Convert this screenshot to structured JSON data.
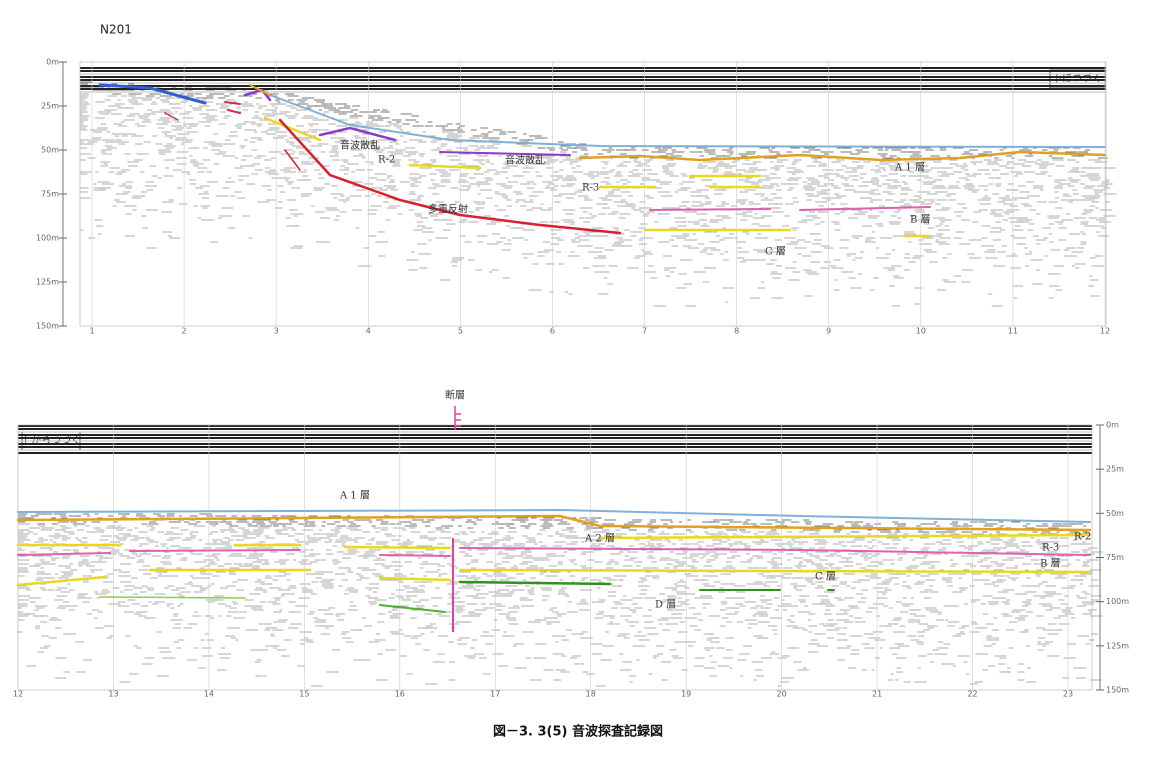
{
  "header": {
    "id": "N201"
  },
  "top_panel": {
    "depth_labels": [
      "0m",
      "25m",
      "50m",
      "75m",
      "100m",
      "125m",
      "150m"
    ],
    "x_labels": [
      "1",
      "2",
      "3",
      "4",
      "5",
      "6",
      "7",
      "8",
      "9",
      "10",
      "11",
      "12"
    ],
    "continue_note": "下につづく",
    "annotations": [
      "音波散乱",
      "R-2",
      "音波散乱",
      "R-3",
      "多重反射",
      "A 1 層",
      "B 層",
      "C 層"
    ]
  },
  "bottom_panel": {
    "depth_labels": [
      "0m",
      "25m",
      "50m",
      "75m",
      "100m",
      "125m",
      "150m"
    ],
    "x_labels": [
      "12",
      "13",
      "14",
      "15",
      "16",
      "17",
      "18",
      "19",
      "20",
      "21",
      "22",
      "23"
    ],
    "continue_note": "上からつづく",
    "fault_label": "断層",
    "annotations": [
      "A 1 層",
      "A 2 層",
      "R-2",
      "R-3",
      "B 層",
      "C 層",
      "D 層"
    ]
  },
  "caption": "図－3. 3(5) 音波探査記録図"
}
